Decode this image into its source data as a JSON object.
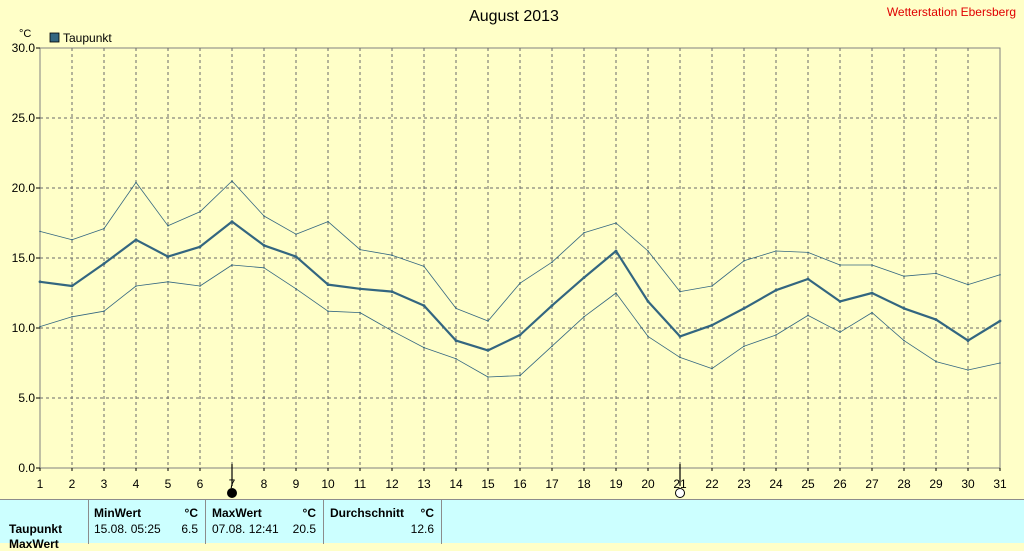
{
  "header": {
    "title": "August 2013",
    "station": "Wetterstation Ebersberg"
  },
  "chart_data": {
    "type": "line",
    "title": "August 2013",
    "ylabel": "°C",
    "ylim": [
      0,
      30
    ],
    "yticks": [
      "0.0",
      "5.0",
      "10.0",
      "15.0",
      "20.0",
      "25.0",
      "30.0"
    ],
    "x": [
      1,
      2,
      3,
      4,
      5,
      6,
      7,
      8,
      9,
      10,
      11,
      12,
      13,
      14,
      15,
      16,
      17,
      18,
      19,
      20,
      21,
      22,
      23,
      24,
      25,
      26,
      27,
      28,
      29,
      30,
      31
    ],
    "legend": {
      "label": "Taupunkt",
      "color": "#336680"
    },
    "series": [
      {
        "name": "Taupunkt",
        "role": "mean",
        "color": "#336680",
        "values": [
          13.3,
          13.0,
          14.6,
          16.3,
          15.1,
          15.8,
          17.6,
          15.9,
          15.1,
          13.1,
          12.8,
          12.6,
          11.6,
          9.1,
          8.4,
          9.5,
          11.6,
          13.6,
          15.5,
          11.9,
          9.4,
          10.2,
          11.4,
          12.7,
          13.5,
          11.9,
          12.5,
          11.4,
          10.6,
          9.1,
          10.5
        ]
      },
      {
        "role": "max",
        "color": "#336680",
        "values": [
          16.9,
          16.3,
          17.1,
          20.4,
          17.3,
          18.3,
          20.5,
          18.0,
          16.7,
          17.6,
          15.6,
          15.2,
          14.4,
          11.4,
          10.5,
          13.2,
          14.7,
          16.8,
          17.5,
          15.5,
          12.6,
          13.0,
          14.8,
          15.5,
          15.4,
          14.5,
          14.5,
          13.7,
          13.9,
          13.1,
          13.8
        ]
      },
      {
        "role": "min",
        "color": "#336680",
        "values": [
          10.1,
          10.8,
          11.2,
          13.0,
          13.3,
          13.0,
          14.5,
          14.3,
          12.8,
          11.2,
          11.1,
          9.8,
          8.6,
          7.8,
          6.5,
          6.6,
          8.7,
          10.8,
          12.5,
          9.4,
          7.9,
          7.1,
          8.7,
          9.5,
          10.9,
          9.7,
          11.1,
          9.1,
          7.6,
          7.0,
          7.5
        ]
      }
    ],
    "markers": [
      {
        "day": 7,
        "symbol": "filled-circle"
      },
      {
        "day": 21,
        "symbol": "open-circle"
      }
    ],
    "grid": true,
    "background": "#ffffc8"
  },
  "stats": {
    "row_label": "Taupunkt",
    "row2_label": "MaxWert",
    "min": {
      "header": "MinWert",
      "unit": "°C",
      "datetime": "15.08.  05:25",
      "value": "6.5"
    },
    "max": {
      "header": "MaxWert",
      "unit": "°C",
      "datetime": "07.08.  12:41",
      "value": "20.5"
    },
    "avg": {
      "header": "Durchschnitt",
      "unit": "°C",
      "value": "12.6"
    }
  }
}
